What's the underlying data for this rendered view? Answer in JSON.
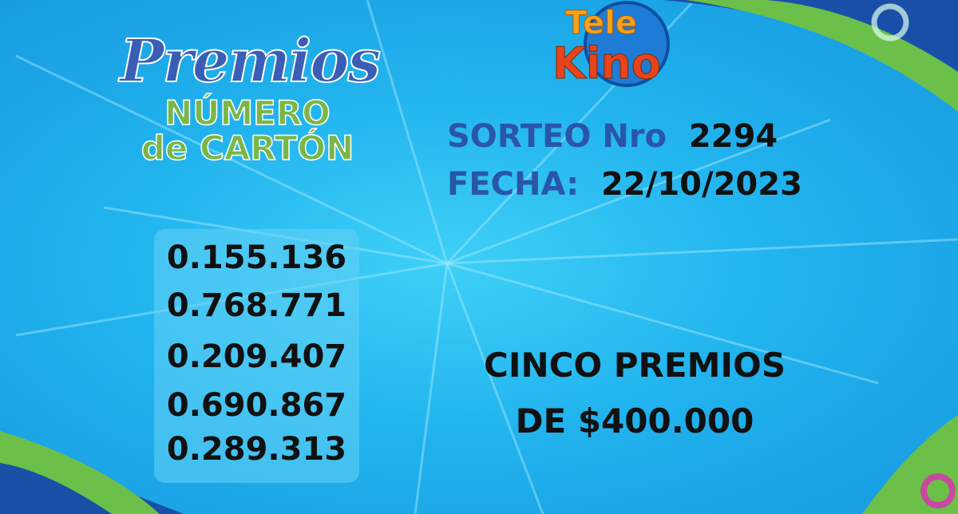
{
  "header": {
    "premios": "Premios",
    "line1": "NÚMERO",
    "line2": "de CARTÓN"
  },
  "logo": {
    "top": "Tele",
    "bottom": "Kino"
  },
  "sorteo": {
    "label": "SORTEO Nro",
    "value": "2294"
  },
  "fecha": {
    "label": "FECHA:",
    "value": "22/10/2023"
  },
  "numbers": [
    "0.155.136",
    "0.768.771",
    "0.209.407",
    "0.690.867",
    "0.289.313"
  ],
  "prize": {
    "line1": "CINCO PREMIOS",
    "line2": "DE $400.000"
  }
}
